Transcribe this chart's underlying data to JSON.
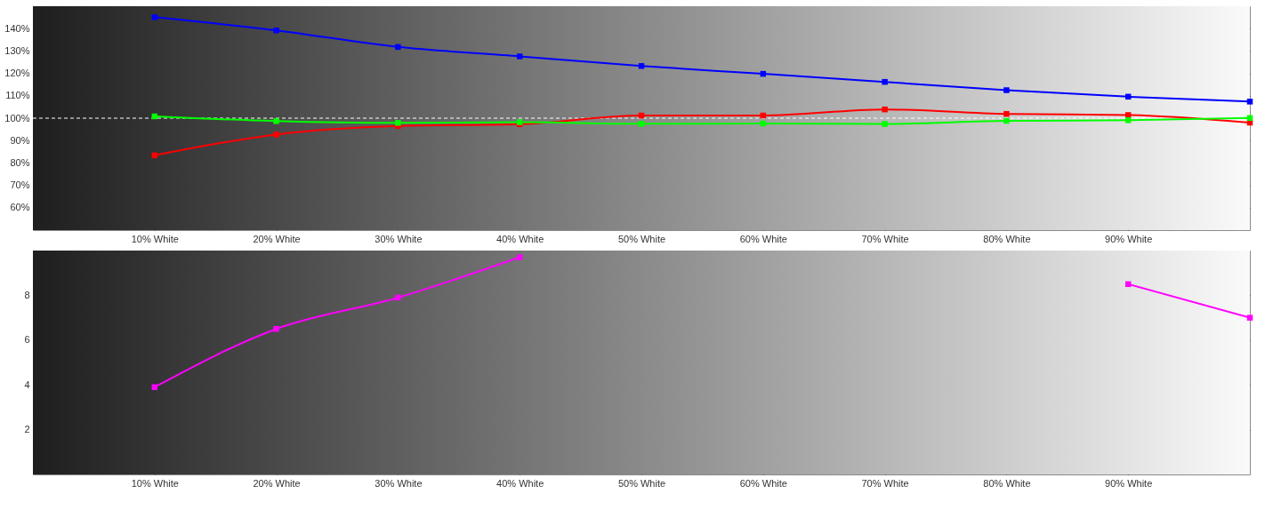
{
  "chart_data": [
    {
      "type": "line",
      "x": [
        10,
        20,
        30,
        40,
        50,
        60,
        70,
        80,
        90,
        100
      ],
      "xlim": [
        0,
        100
      ],
      "xticks": [
        {
          "value": 10,
          "label": "10% White"
        },
        {
          "value": 20,
          "label": "20% White"
        },
        {
          "value": 30,
          "label": "30% White"
        },
        {
          "value": 40,
          "label": "40% White"
        },
        {
          "value": 50,
          "label": "50% White"
        },
        {
          "value": 60,
          "label": "60% White"
        },
        {
          "value": 70,
          "label": "70% White"
        },
        {
          "value": 80,
          "label": "80% White"
        },
        {
          "value": 90,
          "label": "90% White"
        }
      ],
      "ylim": [
        50,
        150
      ],
      "yticks": [
        {
          "value": 60,
          "label": "60%"
        },
        {
          "value": 70,
          "label": "70%"
        },
        {
          "value": 80,
          "label": "80%"
        },
        {
          "value": 90,
          "label": "90%"
        },
        {
          "value": 100,
          "label": "100%"
        },
        {
          "value": 110,
          "label": "110%"
        },
        {
          "value": 120,
          "label": "120%"
        },
        {
          "value": 130,
          "label": "130%"
        },
        {
          "value": 140,
          "label": "140%"
        }
      ],
      "series": [
        {
          "color": "#0000ff",
          "values": [
            145.1,
            139.2,
            131.8,
            127.6,
            123.3,
            119.8,
            116.2,
            112.5,
            109.6,
            107.4
          ]
        },
        {
          "color": "#ff0000",
          "values": [
            83.4,
            92.7,
            96.5,
            97.3,
            101.2,
            101.2,
            103.9,
            101.9,
            101.4,
            98.0
          ]
        },
        {
          "color": "#00ff00",
          "values": [
            100.8,
            98.7,
            97.9,
            98.2,
            97.5,
            97.6,
            97.4,
            98.8,
            99.1,
            100.1
          ]
        }
      ],
      "ref_lines": [
        {
          "axis": "y",
          "value": 100,
          "color": "#ffffff",
          "line_style": "dashed"
        }
      ],
      "marker": "square",
      "line_style": "solid",
      "grid": true,
      "legend": false
    },
    {
      "type": "line",
      "x": [
        10,
        20,
        30,
        40,
        50,
        60,
        70,
        80,
        90,
        100
      ],
      "xlim": [
        0,
        100
      ],
      "xticks": [
        {
          "value": 10,
          "label": "10% White"
        },
        {
          "value": 20,
          "label": "20% White"
        },
        {
          "value": 30,
          "label": "30% White"
        },
        {
          "value": 40,
          "label": "40% White"
        },
        {
          "value": 50,
          "label": "50% White"
        },
        {
          "value": 60,
          "label": "60% White"
        },
        {
          "value": 70,
          "label": "70% White"
        },
        {
          "value": 80,
          "label": "80% White"
        },
        {
          "value": 90,
          "label": "90% White"
        }
      ],
      "ylim": [
        0,
        10
      ],
      "yticks": [
        2,
        4,
        6,
        8
      ],
      "series": [
        {
          "color": "#ff00ff",
          "values": [
            3.9,
            6.5,
            7.9,
            9.7,
            null,
            null,
            null,
            null,
            8.5,
            7.0
          ]
        }
      ],
      "marker": "square",
      "line_style": "solid",
      "grid": true,
      "legend": false
    }
  ]
}
